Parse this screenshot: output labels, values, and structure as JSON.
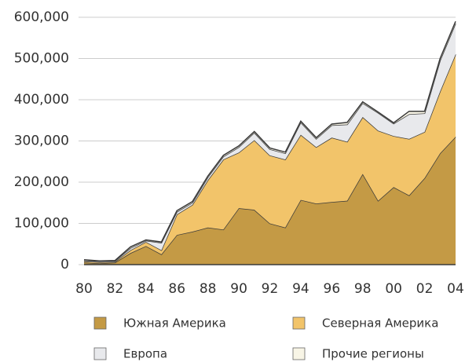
{
  "chart_data": {
    "type": "stacked_area",
    "categories": [
      "80",
      null,
      "82",
      null,
      "84",
      null,
      "86",
      null,
      "88",
      null,
      "90",
      null,
      "92",
      null,
      "94",
      null,
      "96",
      null,
      "98",
      null,
      "00",
      null,
      "02",
      null,
      "04"
    ],
    "series": [
      {
        "name": "Южная Америка",
        "color": "#c49a45",
        "values": [
          5000,
          3000,
          5000,
          28000,
          45000,
          25000,
          72000,
          80000,
          90000,
          85000,
          137000,
          133000,
          100000,
          90000,
          157000,
          148000,
          152000,
          155000,
          220000,
          155000,
          188000,
          168000,
          210000,
          270000,
          310000
        ]
      },
      {
        "name": "Северная Америка",
        "color": "#f2c46a",
        "values": [
          3000,
          3000,
          2000,
          7000,
          10000,
          10000,
          50000,
          65000,
          115000,
          170000,
          135000,
          169000,
          165000,
          165000,
          158000,
          137000,
          156000,
          143000,
          138000,
          170000,
          124000,
          137000,
          112000,
          150000,
          200000
        ]
      },
      {
        "name": "Европа",
        "color": "#e8e9ec",
        "values": [
          2000,
          2000,
          2000,
          5000,
          3000,
          18000,
          6000,
          5000,
          7000,
          7000,
          13000,
          18000,
          15000,
          15000,
          30000,
          20000,
          30000,
          42000,
          34000,
          43000,
          30000,
          60000,
          45000,
          75000,
          75000
        ]
      },
      {
        "name": "Прочие регионы",
        "color": "#f8f5e6",
        "values": [
          2000,
          1000,
          1000,
          3000,
          2000,
          2000,
          3000,
          3000,
          3000,
          3000,
          3000,
          3000,
          3000,
          3000,
          3000,
          3000,
          3000,
          5000,
          3000,
          2000,
          2000,
          7000,
          5000,
          5000,
          5000
        ]
      }
    ],
    "ylim": [
      0,
      600000
    ],
    "yticks": [
      0,
      {
        "value": 100000,
        "label": "100,000"
      },
      {
        "value": 200000,
        "label": "200,000"
      },
      {
        "value": 300000,
        "label": "300,000"
      },
      {
        "value": 400000,
        "label": "400,000"
      },
      {
        "value": 500000,
        "label": "500,000"
      },
      {
        "value": 600000,
        "label": "600,000"
      }
    ],
    "grid": true
  }
}
